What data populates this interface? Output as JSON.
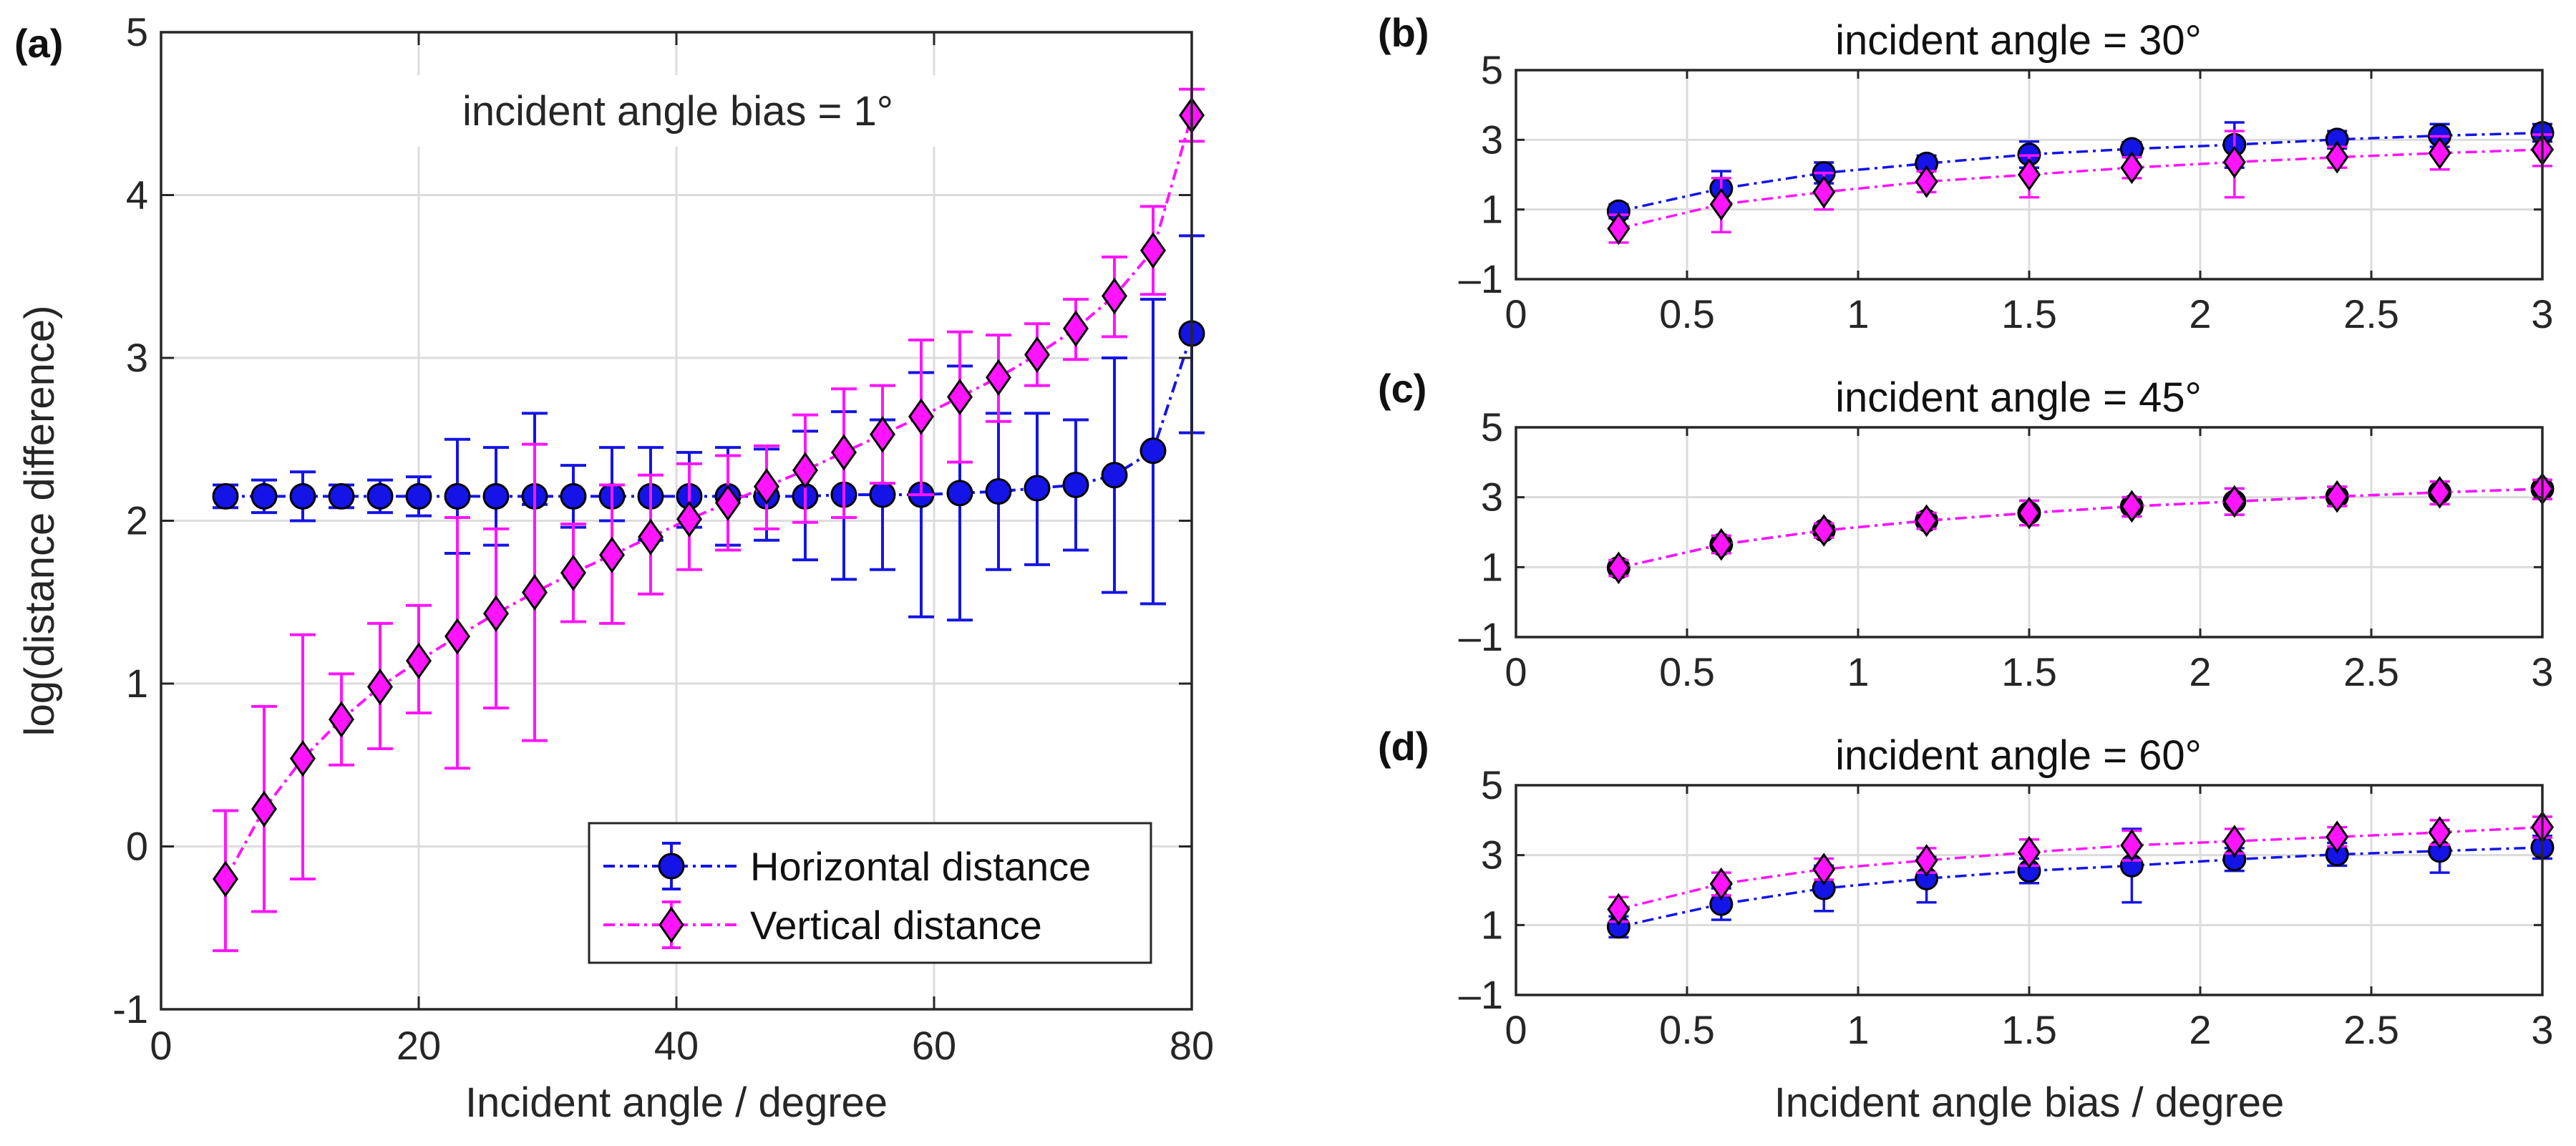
{
  "figure_labels": {
    "a": "(a)",
    "b": "(b)",
    "c": "(c)",
    "d": "(d)"
  },
  "colors": {
    "horizontal": "#1414e6",
    "vertical": "#ff14ff",
    "grid": "#dcdcdc",
    "axis": "#262626"
  },
  "chart_data": [
    {
      "id": "a",
      "type": "line",
      "title": "",
      "annotation": "incident angle bias = 1°",
      "xlabel": "Incident angle / degree",
      "ylabel": "log(distance difference)",
      "xlim": [
        0,
        80
      ],
      "ylim": [
        -1,
        5
      ],
      "xticks": [
        0,
        20,
        40,
        60,
        80
      ],
      "yticks": [
        -1,
        0,
        1,
        2,
        3,
        4,
        5
      ],
      "grid": true,
      "legend": {
        "position": "bottom-right",
        "entries": [
          "Horizontal distance",
          "Vertical distance"
        ]
      },
      "x": [
        5,
        8,
        11,
        14,
        17,
        20,
        23,
        26,
        29,
        32,
        35,
        38,
        41,
        44,
        47,
        50,
        53,
        56,
        59,
        62,
        65,
        68,
        71,
        74,
        77,
        80
      ],
      "series": [
        {
          "name": "Horizontal distance",
          "marker": "circle",
          "values": [
            2.15,
            2.15,
            2.15,
            2.15,
            2.15,
            2.15,
            2.15,
            2.15,
            2.15,
            2.15,
            2.15,
            2.15,
            2.15,
            2.15,
            2.15,
            2.15,
            2.16,
            2.16,
            2.16,
            2.17,
            2.18,
            2.2,
            2.22,
            2.28,
            2.43,
            3.15
          ],
          "lower": [
            2.08,
            2.05,
            2.0,
            2.08,
            2.05,
            2.03,
            1.8,
            1.85,
            2.1,
            1.96,
            2.0,
            1.88,
            1.96,
            1.85,
            1.88,
            1.76,
            1.64,
            1.7,
            1.41,
            1.39,
            1.7,
            1.73,
            1.82,
            1.56,
            1.49,
            2.54
          ],
          "upper": [
            2.22,
            2.25,
            2.3,
            2.22,
            2.25,
            2.27,
            2.5,
            2.45,
            2.66,
            2.34,
            2.45,
            2.45,
            2.42,
            2.45,
            2.44,
            2.55,
            2.67,
            2.62,
            2.91,
            2.95,
            2.66,
            2.66,
            2.62,
            3.0,
            3.36,
            3.75
          ]
        },
        {
          "name": "Vertical distance",
          "marker": "diamond",
          "values": [
            -0.2,
            0.23,
            0.54,
            0.78,
            0.98,
            1.14,
            1.29,
            1.43,
            1.56,
            1.68,
            1.79,
            1.9,
            2.01,
            2.11,
            2.21,
            2.31,
            2.42,
            2.53,
            2.64,
            2.76,
            2.88,
            3.02,
            3.18,
            3.38,
            3.66,
            4.49
          ],
          "lower": [
            -0.64,
            -0.4,
            -0.2,
            0.5,
            0.6,
            0.82,
            0.48,
            0.85,
            0.65,
            1.38,
            1.37,
            1.55,
            1.7,
            1.82,
            1.95,
            1.99,
            2.02,
            2.23,
            2.16,
            2.36,
            2.61,
            2.83,
            2.99,
            3.13,
            3.39,
            4.33
          ],
          "upper": [
            0.22,
            0.86,
            1.3,
            1.06,
            1.37,
            1.48,
            2.02,
            1.95,
            2.47,
            1.98,
            2.22,
            2.28,
            2.35,
            2.4,
            2.46,
            2.65,
            2.81,
            2.83,
            3.11,
            3.16,
            3.14,
            3.21,
            3.36,
            3.62,
            3.93,
            4.65
          ]
        }
      ]
    },
    {
      "id": "b",
      "type": "line",
      "title": "incident angle = 30°",
      "xlabel": "",
      "ylabel": "",
      "xlim": [
        0,
        3
      ],
      "ylim": [
        -1,
        5
      ],
      "xticks": [
        "0",
        "0.5",
        "1",
        "1.5",
        "2",
        "2.5",
        "3"
      ],
      "yticks": [
        "–1",
        "1",
        "3",
        "5"
      ],
      "grid": true,
      "x": [
        0.3,
        0.6,
        0.9,
        1.2,
        1.5,
        1.8,
        2.1,
        2.4,
        2.7,
        3.0
      ],
      "series": [
        {
          "name": "Horizontal distance",
          "marker": "circle",
          "values": [
            0.95,
            1.6,
            2.05,
            2.32,
            2.58,
            2.74,
            2.86,
            3.01,
            3.12,
            3.2
          ],
          "lower": [
            0.75,
            1.1,
            1.75,
            2.1,
            2.2,
            2.55,
            2.2,
            2.75,
            2.8,
            2.95
          ],
          "upper": [
            1.15,
            2.1,
            2.35,
            2.55,
            2.95,
            2.93,
            3.5,
            3.25,
            3.45,
            3.45
          ]
        },
        {
          "name": "Vertical distance",
          "marker": "diamond",
          "values": [
            0.45,
            1.15,
            1.5,
            1.8,
            2.0,
            2.2,
            2.36,
            2.5,
            2.62,
            2.72
          ],
          "lower": [
            0.05,
            0.35,
            1.0,
            1.5,
            1.35,
            1.9,
            1.35,
            2.2,
            2.15,
            2.25
          ],
          "upper": [
            0.85,
            1.9,
            2.05,
            2.1,
            2.55,
            2.5,
            3.25,
            2.8,
            3.1,
            3.15
          ]
        }
      ]
    },
    {
      "id": "c",
      "type": "line",
      "title": "incident angle = 45°",
      "xlabel": "",
      "ylabel": "",
      "xlim": [
        0,
        3
      ],
      "ylim": [
        -1,
        5
      ],
      "xticks": [
        "0",
        "0.5",
        "1",
        "1.5",
        "2",
        "2.5",
        "3"
      ],
      "yticks": [
        "–1",
        "1",
        "3",
        "5"
      ],
      "grid": true,
      "x": [
        0.3,
        0.6,
        0.9,
        1.2,
        1.5,
        1.8,
        2.1,
        2.4,
        2.7,
        3.0
      ],
      "series": [
        {
          "name": "Horizontal distance",
          "marker": "circle",
          "values": [
            0.98,
            1.65,
            2.05,
            2.33,
            2.55,
            2.74,
            2.88,
            3.02,
            3.14,
            3.24
          ],
          "lower": [
            0.75,
            1.4,
            1.85,
            2.1,
            2.2,
            2.45,
            2.5,
            2.75,
            2.8,
            2.95
          ],
          "upper": [
            1.2,
            1.9,
            2.25,
            2.55,
            2.9,
            3.0,
            3.25,
            3.3,
            3.45,
            3.5
          ]
        },
        {
          "name": "Vertical distance",
          "marker": "diamond",
          "values": [
            0.98,
            1.65,
            2.05,
            2.33,
            2.55,
            2.74,
            2.88,
            3.02,
            3.14,
            3.24
          ],
          "lower": [
            0.75,
            1.4,
            1.85,
            2.1,
            2.2,
            2.45,
            2.5,
            2.75,
            2.8,
            2.95
          ],
          "upper": [
            1.2,
            1.9,
            2.25,
            2.55,
            2.9,
            3.0,
            3.25,
            3.3,
            3.45,
            3.5
          ]
        }
      ]
    },
    {
      "id": "d",
      "type": "line",
      "title": "incident angle = 60°",
      "xlabel": "Incident angle bias / degree",
      "ylabel": "",
      "xlim": [
        0,
        3
      ],
      "ylim": [
        -1,
        5
      ],
      "xticks": [
        "0",
        "0.5",
        "1",
        "1.5",
        "2",
        "2.5",
        "3"
      ],
      "yticks": [
        "–1",
        "1",
        "3",
        "5"
      ],
      "grid": true,
      "x": [
        0.3,
        0.6,
        0.9,
        1.2,
        1.5,
        1.8,
        2.1,
        2.4,
        2.7,
        3.0
      ],
      "series": [
        {
          "name": "Horizontal distance",
          "marker": "circle",
          "values": [
            0.95,
            1.6,
            2.05,
            2.33,
            2.55,
            2.7,
            2.88,
            3.02,
            3.12,
            3.22
          ],
          "lower": [
            0.65,
            1.15,
            1.4,
            1.65,
            2.2,
            1.65,
            2.55,
            2.7,
            2.5,
            2.9
          ],
          "upper": [
            1.25,
            2.05,
            2.7,
            2.95,
            2.9,
            3.75,
            3.2,
            3.35,
            3.74,
            3.55
          ]
        },
        {
          "name": "Vertical distance",
          "marker": "diamond",
          "values": [
            1.45,
            2.18,
            2.6,
            2.85,
            3.08,
            3.28,
            3.4,
            3.52,
            3.65,
            3.8
          ],
          "lower": [
            1.1,
            1.85,
            2.3,
            2.5,
            2.7,
            2.85,
            3.05,
            3.25,
            3.3,
            3.5
          ],
          "upper": [
            1.8,
            2.5,
            2.9,
            3.2,
            3.45,
            3.7,
            3.75,
            3.8,
            4.0,
            4.1
          ]
        }
      ]
    }
  ]
}
